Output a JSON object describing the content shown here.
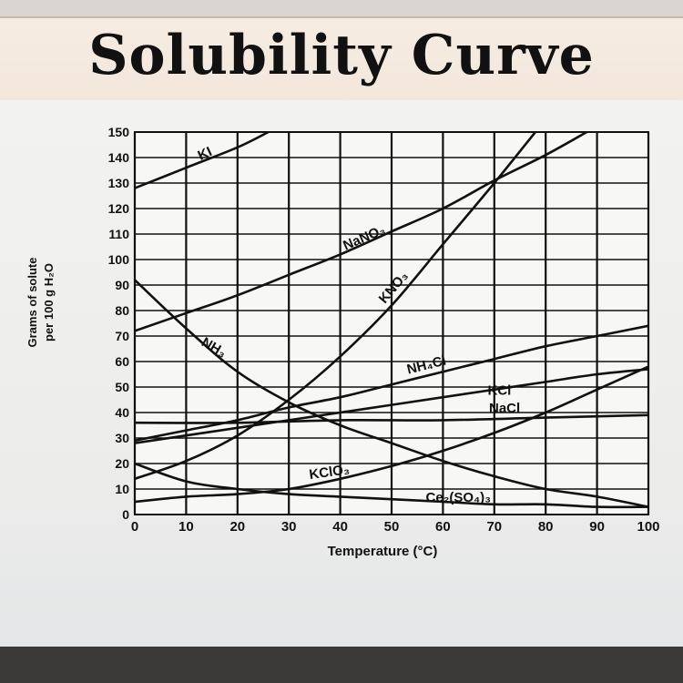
{
  "chart_data": {
    "type": "line",
    "title": "Solubility Curve",
    "xlabel": "Temperature (°C)",
    "ylabel": [
      "Grams of solute",
      "per 100 g H₂O"
    ],
    "xlim": [
      0,
      100
    ],
    "ylim": [
      0,
      150
    ],
    "x_ticks": [
      0,
      10,
      20,
      30,
      40,
      50,
      60,
      70,
      80,
      90,
      100
    ],
    "y_ticks": [
      0,
      10,
      20,
      30,
      40,
      50,
      60,
      70,
      80,
      90,
      100,
      110,
      120,
      130,
      140,
      150
    ],
    "grid": true,
    "series": [
      {
        "name": "KI",
        "label_at": [
          14,
          140
        ],
        "label_angle": -25,
        "points": [
          [
            0,
            128
          ],
          [
            10,
            136
          ],
          [
            20,
            144
          ],
          [
            26,
            150
          ]
        ]
      },
      {
        "name": "NaNO₃",
        "label_at": [
          45,
          107
        ],
        "label_angle": -23,
        "points": [
          [
            0,
            72
          ],
          [
            10,
            79
          ],
          [
            20,
            86
          ],
          [
            30,
            94
          ],
          [
            40,
            102
          ],
          [
            50,
            111
          ],
          [
            60,
            120
          ],
          [
            70,
            131
          ],
          [
            80,
            141
          ],
          [
            88,
            150
          ]
        ]
      },
      {
        "name": "KNO₃",
        "label_at": [
          51,
          88
        ],
        "label_angle": -50,
        "points": [
          [
            0,
            14
          ],
          [
            10,
            21
          ],
          [
            20,
            31
          ],
          [
            30,
            45
          ],
          [
            40,
            62
          ],
          [
            50,
            82
          ],
          [
            60,
            106
          ],
          [
            70,
            130
          ],
          [
            78,
            150
          ]
        ]
      },
      {
        "name": "NH₃",
        "label_at": [
          15,
          64
        ],
        "label_angle": 30,
        "points": [
          [
            0,
            92
          ],
          [
            10,
            73
          ],
          [
            20,
            56
          ],
          [
            30,
            44
          ],
          [
            40,
            35
          ],
          [
            50,
            28
          ],
          [
            60,
            21
          ],
          [
            70,
            15
          ],
          [
            80,
            10
          ],
          [
            90,
            7
          ],
          [
            100,
            3
          ]
        ]
      },
      {
        "name": "NH₄Cl",
        "label_at": [
          57,
          57
        ],
        "label_angle": -14,
        "points": [
          [
            0,
            29
          ],
          [
            10,
            33
          ],
          [
            20,
            37
          ],
          [
            30,
            42
          ],
          [
            40,
            46
          ],
          [
            50,
            51
          ],
          [
            60,
            56
          ],
          [
            70,
            61
          ],
          [
            80,
            66
          ],
          [
            90,
            70
          ],
          [
            100,
            74
          ]
        ]
      },
      {
        "name": "KCl",
        "label_at": [
          71,
          47
        ],
        "label_angle": 0,
        "points": [
          [
            0,
            28
          ],
          [
            10,
            31
          ],
          [
            20,
            34
          ],
          [
            30,
            37
          ],
          [
            40,
            40
          ],
          [
            50,
            43
          ],
          [
            60,
            46
          ],
          [
            70,
            49
          ],
          [
            80,
            52
          ],
          [
            90,
            55
          ],
          [
            100,
            57
          ]
        ]
      },
      {
        "name": "NaCl",
        "label_at": [
          72,
          40
        ],
        "label_angle": 0,
        "points": [
          [
            0,
            36
          ],
          [
            20,
            36
          ],
          [
            40,
            37
          ],
          [
            60,
            37
          ],
          [
            80,
            38
          ],
          [
            100,
            39
          ]
        ]
      },
      {
        "name": "KClO₃",
        "label_at": [
          38,
          15
        ],
        "label_angle": -8,
        "points": [
          [
            0,
            5
          ],
          [
            10,
            7
          ],
          [
            20,
            8
          ],
          [
            30,
            10
          ],
          [
            40,
            14
          ],
          [
            50,
            19
          ],
          [
            60,
            25
          ],
          [
            70,
            32
          ],
          [
            80,
            40
          ],
          [
            90,
            49
          ],
          [
            100,
            58
          ]
        ]
      },
      {
        "name": "Ce₂(SO₄)₃",
        "label_at": [
          63,
          5
        ],
        "label_angle": 0,
        "points": [
          [
            0,
            20
          ],
          [
            10,
            13
          ],
          [
            20,
            10
          ],
          [
            30,
            8
          ],
          [
            40,
            7
          ],
          [
            50,
            6
          ],
          [
            60,
            5
          ],
          [
            70,
            4
          ],
          [
            80,
            4
          ],
          [
            90,
            3
          ],
          [
            100,
            3
          ]
        ]
      }
    ]
  }
}
